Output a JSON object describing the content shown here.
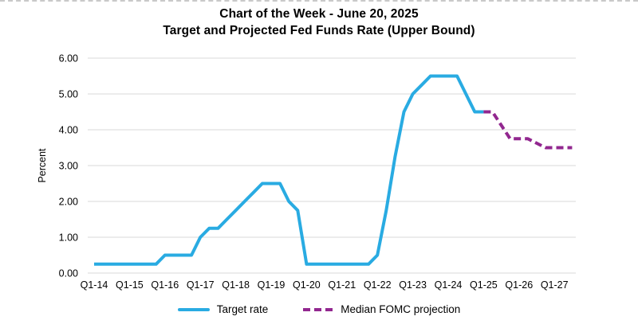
{
  "colors": {
    "target_rate": "#29ABE2",
    "projection": "#92278F",
    "gridline": "#D9D9D9",
    "text": "#000000"
  },
  "legend": [
    {
      "label": "Target rate",
      "style": "solid"
    },
    {
      "label": "Median FOMC projection",
      "style": "dashed"
    }
  ],
  "chart_data": {
    "type": "line",
    "title": "Chart of the Week - June 20, 2025",
    "subtitle": "Target and Projected Fed Funds Rate (Upper Bound)",
    "ylabel": "Percent",
    "xlabel": "",
    "ylim": [
      0,
      6
    ],
    "ytick_labels": [
      "0.00",
      "1.00",
      "2.00",
      "3.00",
      "4.00",
      "5.00",
      "6.00"
    ],
    "xlim": [
      "Q1-14",
      "Q3-27"
    ],
    "xtick_labels": [
      "Q1-14",
      "Q1-15",
      "Q1-16",
      "Q1-17",
      "Q1-18",
      "Q1-19",
      "Q1-20",
      "Q1-21",
      "Q1-22",
      "Q1-23",
      "Q1-24",
      "Q1-25",
      "Q1-26",
      "Q1-27"
    ],
    "grid": "horizontal",
    "legend_position": "bottom",
    "series": [
      {
        "name": "Target rate",
        "style": "solid",
        "color": "#29ABE2",
        "quarters": [
          "Q1-14",
          "Q2-14",
          "Q3-14",
          "Q4-14",
          "Q1-15",
          "Q2-15",
          "Q3-15",
          "Q4-15",
          "Q1-16",
          "Q2-16",
          "Q3-16",
          "Q4-16",
          "Q1-17",
          "Q2-17",
          "Q3-17",
          "Q4-17",
          "Q1-18",
          "Q2-18",
          "Q3-18",
          "Q4-18",
          "Q1-19",
          "Q2-19",
          "Q3-19",
          "Q4-19",
          "Q1-20",
          "Q2-20",
          "Q3-20",
          "Q4-20",
          "Q1-21",
          "Q2-21",
          "Q3-21",
          "Q4-21",
          "Q1-22",
          "Q2-22",
          "Q3-22",
          "Q4-22",
          "Q1-23",
          "Q2-23",
          "Q3-23",
          "Q4-23",
          "Q1-24",
          "Q2-24",
          "Q3-24",
          "Q4-24",
          "Q1-25"
        ],
        "values": [
          0.25,
          0.25,
          0.25,
          0.25,
          0.25,
          0.25,
          0.25,
          0.25,
          0.5,
          0.5,
          0.5,
          0.5,
          1.0,
          1.25,
          1.25,
          1.5,
          1.75,
          2.0,
          2.25,
          2.5,
          2.5,
          2.5,
          2.0,
          1.75,
          0.25,
          0.25,
          0.25,
          0.25,
          0.25,
          0.25,
          0.25,
          0.25,
          0.5,
          1.75,
          3.25,
          4.5,
          5.0,
          5.25,
          5.5,
          5.5,
          5.5,
          5.5,
          5.0,
          4.5,
          4.5
        ]
      },
      {
        "name": "Median FOMC projection",
        "style": "dashed",
        "color": "#92278F",
        "quarters": [
          "Q1-25",
          "Q2-25",
          "Q3-25",
          "Q4-25",
          "Q1-26",
          "Q2-26",
          "Q3-26",
          "Q4-26",
          "Q1-27",
          "Q2-27",
          "Q3-27"
        ],
        "values": [
          4.5,
          4.5,
          4.125,
          3.75,
          3.75,
          3.75,
          3.625,
          3.5,
          3.5,
          3.5,
          3.5
        ]
      }
    ]
  }
}
